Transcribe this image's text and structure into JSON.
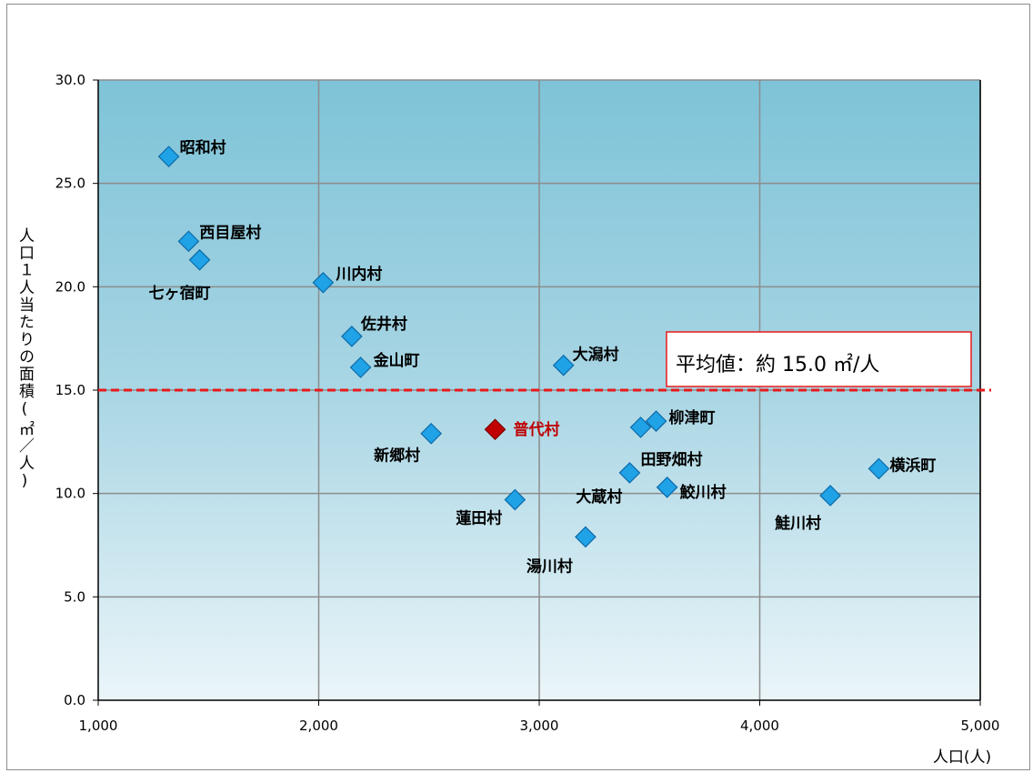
{
  "chart_data": {
    "type": "scatter",
    "title": "",
    "xlabel": "人口(人)",
    "ylabel": "人口１人当たりの面積(㎡／人)",
    "xlim": [
      1000,
      5000
    ],
    "ylim": [
      0,
      30
    ],
    "xticks": [
      1000,
      2000,
      3000,
      4000,
      5000
    ],
    "xtick_labels": [
      "1,000",
      "2,000",
      "3,000",
      "4,000",
      "5,000"
    ],
    "yticks": [
      0,
      5,
      10,
      15,
      20,
      25,
      30
    ],
    "ytick_labels": [
      "0.0",
      "5.0",
      "10.0",
      "15.0",
      "20.0",
      "25.0",
      "30.0"
    ],
    "grid": true,
    "points": [
      {
        "label": "昭和村",
        "x": 1320,
        "y": 26.3,
        "highlight": false
      },
      {
        "label": "西目屋村",
        "x": 1410,
        "y": 22.2,
        "highlight": false
      },
      {
        "label": "七ヶ宿町",
        "x": 1460,
        "y": 21.3,
        "highlight": false
      },
      {
        "label": "川内村",
        "x": 2020,
        "y": 20.2,
        "highlight": false
      },
      {
        "label": "佐井村",
        "x": 2150,
        "y": 17.6,
        "highlight": false
      },
      {
        "label": "金山町",
        "x": 2190,
        "y": 16.1,
        "highlight": false
      },
      {
        "label": "大潟村",
        "x": 3110,
        "y": 16.2,
        "highlight": false
      },
      {
        "label": "新郷村",
        "x": 2510,
        "y": 12.9,
        "highlight": false
      },
      {
        "label": "普代村",
        "x": 2800,
        "y": 13.1,
        "highlight": true
      },
      {
        "label": "柳津町",
        "x": 3530,
        "y": 13.5,
        "highlight": false
      },
      {
        "label": "田野畑村",
        "x": 3460,
        "y": 13.2,
        "highlight": false
      },
      {
        "label": "大蔵村",
        "x": 3410,
        "y": 11.0,
        "highlight": false
      },
      {
        "label": "鮫川村",
        "x": 3580,
        "y": 10.3,
        "highlight": false
      },
      {
        "label": "蓮田村",
        "x": 2890,
        "y": 9.7,
        "highlight": false
      },
      {
        "label": "湯川村",
        "x": 3210,
        "y": 7.9,
        "highlight": false
      },
      {
        "label": "横浜町",
        "x": 4540,
        "y": 11.2,
        "highlight": false
      },
      {
        "label": "鮭川村",
        "x": 4320,
        "y": 9.9,
        "highlight": false
      }
    ],
    "reference_line": {
      "y": 15.0,
      "label": "平均値：約 15.0 ㎡/人",
      "color": "#e8191b"
    },
    "colors": {
      "point": "#1fa2e6",
      "point_stroke": "#0e6aa8",
      "highlight": "#c00000",
      "bg_top": "#7fc4d9",
      "bg_bottom": "#e7f3f8",
      "grid": "#8c8c8c"
    }
  }
}
